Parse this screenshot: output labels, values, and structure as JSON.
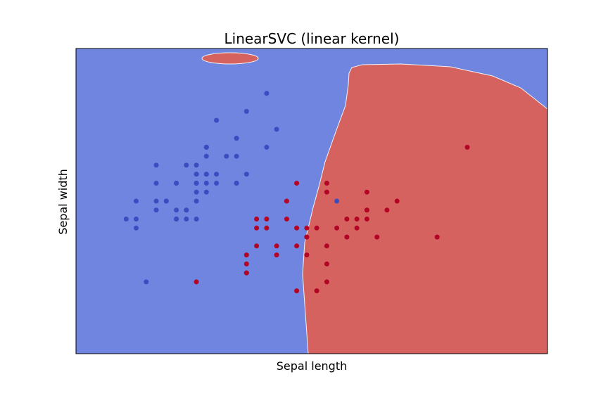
{
  "chart_data": {
    "type": "scatter",
    "title": "LinearSVC (linear kernel)",
    "xlabel": "Sepal length",
    "ylabel": "Sepal width",
    "xlim": [
      3.8,
      8.5
    ],
    "ylim": [
      1.5,
      4.9
    ],
    "ticks_shown": false,
    "grid": false,
    "legend": "none",
    "colors": {
      "region_class_0": "#6f85e0",
      "region_class_1": "#d5625f",
      "point_class_0": "#3a4cc0",
      "point_class_1": "#b40426"
    },
    "decision_regions": [
      {
        "class": 1,
        "description": "large red region on right side"
      },
      {
        "class": 1,
        "description": "small red island near top"
      }
    ],
    "series": [
      {
        "class": 0,
        "x": [
          5.1,
          4.9,
          4.7,
          4.6,
          5.0,
          5.4,
          4.6,
          5.0,
          4.4,
          4.9,
          5.4,
          4.8,
          4.8,
          4.3,
          5.8,
          5.7,
          5.4,
          5.1,
          5.7,
          5.1,
          5.4,
          5.1,
          4.6,
          5.1,
          4.8,
          5.0,
          5.0,
          5.2,
          5.2,
          4.7,
          4.8,
          5.4,
          5.2,
          5.5,
          4.9,
          5.0,
          5.5,
          4.9,
          4.4,
          5.1,
          5.0,
          4.5,
          4.4,
          5.0,
          5.1,
          4.8,
          5.1,
          4.6,
          5.3,
          5.0,
          6.4,
          5.5
        ],
        "y": [
          3.5,
          3.0,
          3.2,
          3.1,
          3.6,
          3.9,
          3.4,
          3.4,
          2.9,
          3.1,
          3.7,
          3.4,
          3.0,
          3.0,
          4.0,
          4.4,
          3.9,
          3.5,
          3.8,
          3.8,
          3.4,
          3.7,
          3.6,
          3.3,
          3.4,
          3.0,
          3.4,
          3.5,
          3.4,
          3.2,
          3.1,
          3.4,
          4.1,
          4.2,
          3.1,
          3.2,
          3.5,
          3.6,
          3.0,
          3.4,
          3.5,
          2.3,
          3.2,
          3.5,
          3.8,
          3.0,
          3.8,
          3.2,
          3.7,
          3.3,
          3.2,
          2.4
        ]
      },
      {
        "class": 1,
        "x": [
          7.0,
          6.9,
          6.5,
          6.3,
          6.6,
          5.9,
          6.0,
          6.1,
          5.6,
          6.7,
          6.2,
          5.9,
          6.1,
          6.3,
          6.1,
          6.4,
          6.6,
          6.8,
          6.7,
          6.0,
          5.5,
          5.8,
          6.0,
          6.0,
          6.7,
          6.3,
          5.6,
          5.5,
          5.5,
          5.8,
          5.0,
          5.6,
          5.7,
          5.7,
          6.2,
          6.5,
          6.7,
          6.1,
          6.3,
          7.7,
          7.4,
          6.3
        ],
        "y": [
          3.2,
          3.1,
          2.8,
          3.3,
          2.9,
          3.0,
          2.2,
          2.9,
          2.9,
          3.1,
          2.2,
          3.2,
          2.8,
          2.5,
          2.8,
          2.9,
          3.0,
          2.8,
          3.0,
          2.9,
          2.4,
          2.7,
          2.7,
          3.4,
          3.1,
          2.3,
          3.0,
          2.5,
          2.6,
          2.6,
          2.3,
          2.7,
          3.0,
          2.9,
          2.9,
          3.0,
          3.3,
          2.6,
          2.7,
          3.8,
          2.8,
          3.4
        ]
      }
    ]
  }
}
